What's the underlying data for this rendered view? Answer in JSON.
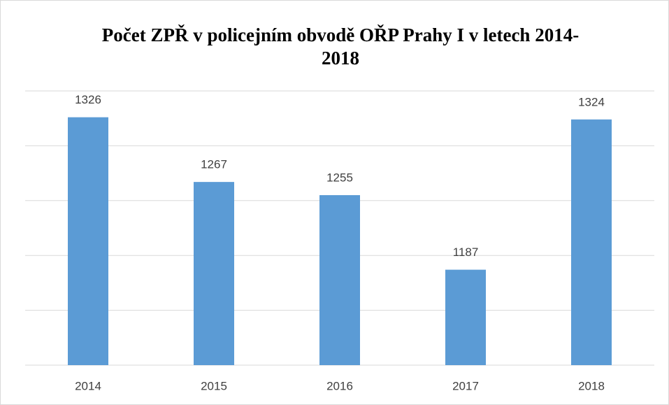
{
  "chart_data": {
    "type": "bar",
    "title": "Počet ZPŘ v policejním obvodě OŘP Prahy I v letech 2014-2018",
    "categories": [
      "2014",
      "2015",
      "2016",
      "2017",
      "2018"
    ],
    "values": [
      1326,
      1267,
      1255,
      1187,
      1324
    ],
    "color": "#5b9bd5",
    "ylim": [
      1100,
      1350
    ],
    "yticks": [
      1100,
      1150,
      1200,
      1250,
      1300,
      1350
    ],
    "grid": true
  }
}
